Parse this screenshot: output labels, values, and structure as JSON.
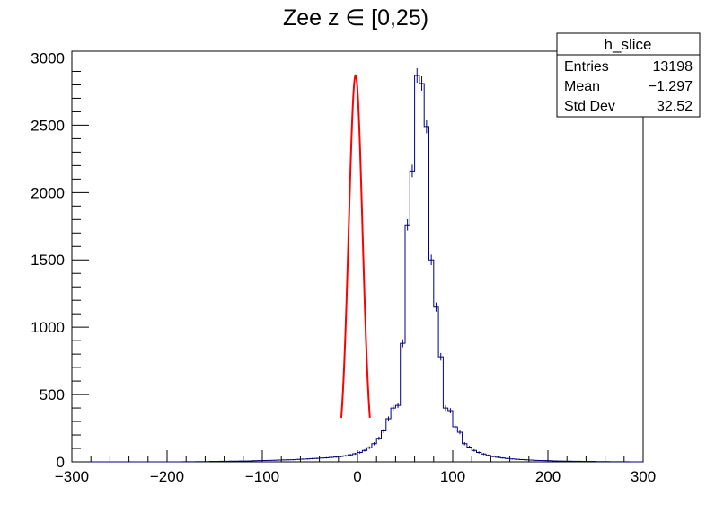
{
  "chart_data": {
    "type": "histogram",
    "title": "Zee z ∈ [0,25)",
    "xlabel": "",
    "ylabel": "",
    "xlim": [
      -300,
      300
    ],
    "ylim": [
      0,
      3050
    ],
    "x_ticks": [
      -300,
      -200,
      -100,
      0,
      100,
      200,
      300
    ],
    "y_ticks": [
      0,
      500,
      1000,
      1500,
      2000,
      2500,
      3000
    ],
    "x_tick_labels": [
      "−300",
      "−200",
      "−100",
      "0",
      "100",
      "200",
      "300"
    ],
    "y_tick_labels": [
      "0",
      "500",
      "1000",
      "1500",
      "2000",
      "2500",
      "3000"
    ],
    "grid": false,
    "bin_width": 5,
    "series": [
      {
        "kind": "histogram",
        "color": "#000080",
        "bin_edges_start": -300,
        "values": [
          0,
          0,
          0,
          0,
          0,
          0,
          0,
          0,
          0,
          0,
          0,
          0,
          0,
          0,
          0,
          0,
          0,
          0,
          0,
          0,
          0,
          0,
          0,
          1,
          1,
          1,
          2,
          2,
          2,
          3,
          3,
          4,
          4,
          5,
          5,
          6,
          6,
          7,
          8,
          9,
          10,
          11,
          12,
          13,
          14,
          15,
          16,
          18,
          20,
          22,
          24,
          26,
          28,
          30,
          33,
          36,
          40,
          45,
          52,
          60,
          70,
          85,
          105,
          135,
          175,
          230,
          320,
          400,
          420,
          880,
          1760,
          2160,
          2870,
          2810,
          2490,
          1500,
          1150,
          780,
          400,
          380,
          260,
          220,
          135,
          110,
          85,
          70,
          58,
          48,
          40,
          34,
          29,
          25,
          22,
          19,
          17,
          15,
          13,
          11,
          10,
          9,
          8,
          7,
          6,
          5,
          5,
          4,
          4,
          3,
          3,
          3,
          2,
          2,
          2,
          1,
          1,
          1,
          1,
          0,
          0,
          0
        ]
      },
      {
        "kind": "fit",
        "color": "#ff0000",
        "function": "gaus",
        "constant": 2870,
        "mean": -2,
        "sigma": 7.2,
        "range": [
          -17,
          13
        ]
      }
    ],
    "stats": {
      "name": "h_slice",
      "rows": [
        {
          "label": "Entries",
          "value": "13198"
        },
        {
          "label": "Mean",
          "value": "−1.297"
        },
        {
          "label": "Std Dev",
          "value": "32.52"
        }
      ]
    }
  }
}
